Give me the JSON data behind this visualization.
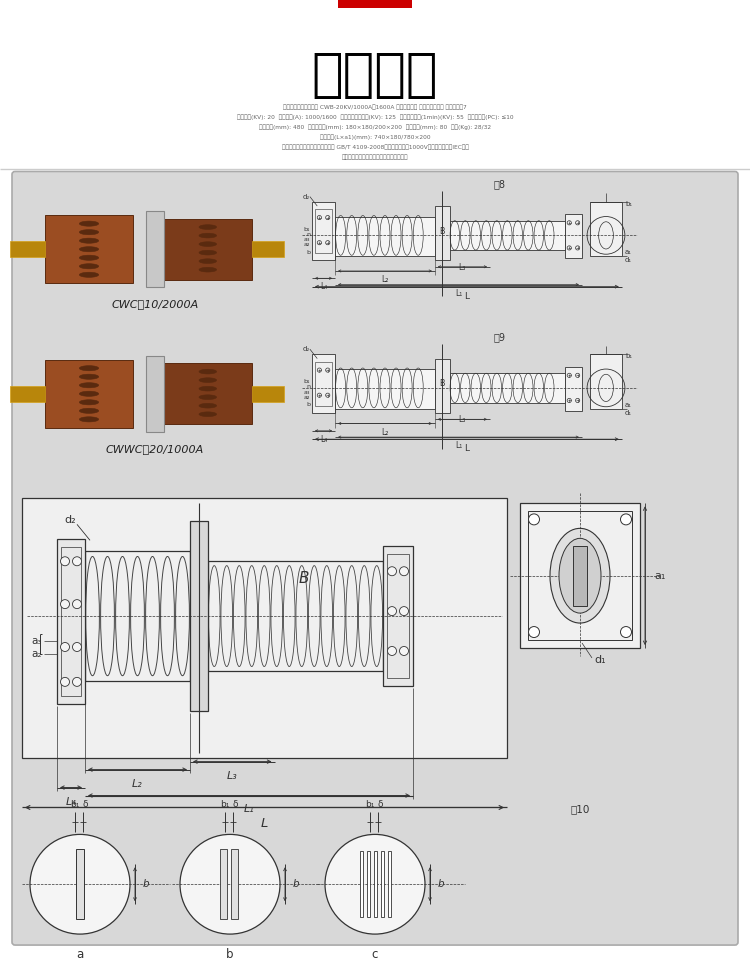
{
  "title": "其他参数",
  "title_fontsize": 38,
  "bg_color": "#ffffff",
  "panel_bg": "#d8d8d8",
  "panel_bg2": "#ebebeb",
  "red_bar_color": "#cc0000",
  "label1": "CWC－10/2000A",
  "label2": "CWWC－20/1000A",
  "line_color": "#333333",
  "subtitle_lines": [
    "高压室内陌瓷展墙套管 CWB-20KV/1000A、1600A 锅排展墙套管 变压器出线套管 直销示例图7",
    "额定电压(KV): 20  额定电流(A): 1000/1600  雷电冲击耐受电压(KV): 125  工频耐受电压(1min)(KV): 55  局部放电量(PC): ≤10",
    "爬电距离(mm): 480  安装法兰板(mm): 180×180/200×200  中心孔径(mm): 80  重量(Kg): 28/32",
    "外形尺寸(L×a1)(mm): 740×180/780×200",
    "特殊规格可以定制，产品性能符合 GB/T 4109-2008《交流电压高于1000V的绝缘套管》，IEC标准",
    "及电力行业标准，具体参数参见产品说明书"
  ]
}
